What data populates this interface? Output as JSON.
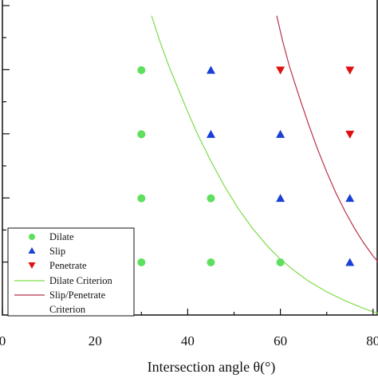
{
  "chart_data": {
    "type": "scatter",
    "xlabel": "Intersection angle θ(°)",
    "x_ticks": [
      "0",
      "20",
      "40",
      "60",
      "80"
    ],
    "xlim": [
      0,
      82
    ],
    "series": [
      {
        "name": "Dilate",
        "marker": "circle",
        "color": "#5ee05e",
        "points": [
          [
            30,
            4
          ],
          [
            30,
            3
          ],
          [
            30,
            2
          ],
          [
            30,
            1
          ],
          [
            45,
            2
          ],
          [
            45,
            1
          ],
          [
            60,
            1
          ]
        ]
      },
      {
        "name": "Slip",
        "marker": "triangle-up",
        "color": "#1a3fd6",
        "points": [
          [
            45,
            4
          ],
          [
            45,
            3
          ],
          [
            60,
            3
          ],
          [
            60,
            2
          ],
          [
            75,
            2
          ],
          [
            75,
            1
          ]
        ]
      },
      {
        "name": "Penetrate",
        "marker": "triangle-down",
        "color": "#e01010",
        "points": [
          [
            60,
            4
          ],
          [
            75,
            4
          ],
          [
            75,
            3
          ]
        ]
      }
    ],
    "curves": [
      {
        "name": "Dilate Criterion",
        "color": "#7ddc4a",
        "points": [
          [
            32.2,
            4.85
          ],
          [
            34,
            4.45
          ],
          [
            36,
            4.05
          ],
          [
            38,
            3.7
          ],
          [
            40,
            3.35
          ],
          [
            42,
            3.02
          ],
          [
            45,
            2.58
          ],
          [
            48,
            2.18
          ],
          [
            51,
            1.83
          ],
          [
            54,
            1.53
          ],
          [
            57,
            1.27
          ],
          [
            60,
            1.05
          ],
          [
            63,
            0.87
          ],
          [
            66,
            0.71
          ],
          [
            70,
            0.54
          ],
          [
            74,
            0.4
          ],
          [
            78,
            0.28
          ],
          [
            82,
            0.18
          ]
        ]
      },
      {
        "name": "Slip/Penetrate Criterion",
        "color": "#b8304a",
        "points": [
          [
            59.2,
            4.85
          ],
          [
            60.5,
            4.45
          ],
          [
            62,
            4.05
          ],
          [
            64,
            3.6
          ],
          [
            66,
            3.17
          ],
          [
            68,
            2.77
          ],
          [
            70,
            2.41
          ],
          [
            72,
            2.08
          ],
          [
            74,
            1.79
          ],
          [
            76,
            1.53
          ],
          [
            78,
            1.3
          ],
          [
            80,
            1.1
          ],
          [
            82,
            0.93
          ]
        ]
      }
    ],
    "legend": {
      "position": "bottom-left",
      "entries": [
        "Dilate",
        "Slip",
        "Penetrate",
        "Dilate Criterion",
        "Slip/Penetrate",
        "Criterion"
      ]
    },
    "grid": false
  }
}
